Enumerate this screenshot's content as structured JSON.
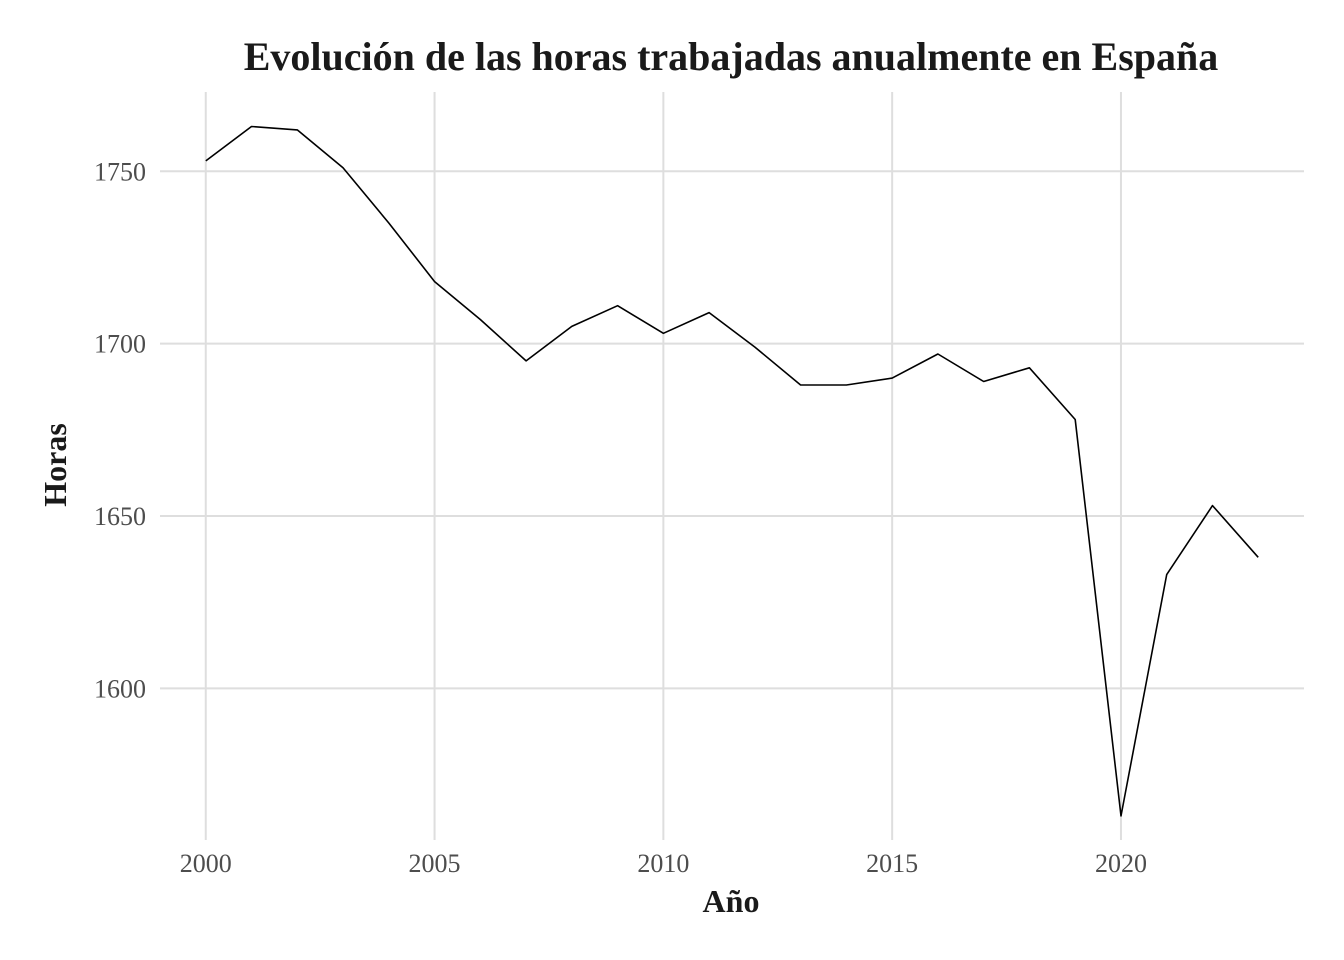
{
  "chart_data": {
    "type": "line",
    "title": "Evolución de las horas trabajadas anualmente en España",
    "xlabel": "Año",
    "ylabel": "Horas",
    "xlim": [
      1999.0,
      2024.0
    ],
    "ylim": [
      1556,
      1773
    ],
    "x_ticks": [
      "2000",
      "2005",
      "2010",
      "2015",
      "2020"
    ],
    "y_ticks": [
      "1600",
      "1650",
      "1700",
      "1750"
    ],
    "grid": true,
    "legend": "none",
    "line_color": "#000000",
    "series": [
      {
        "x": [
          2000,
          2001,
          2002,
          2003,
          2004,
          2005,
          2006,
          2007,
          2008,
          2009,
          2010,
          2011,
          2012,
          2013,
          2014,
          2015,
          2016,
          2017,
          2018,
          2019,
          2020,
          2021,
          2022,
          2023
        ],
        "values": [
          1753,
          1763,
          1762,
          1751,
          1735,
          1718,
          1707,
          1695,
          1705,
          1711,
          1703,
          1709,
          1699,
          1688,
          1688,
          1690,
          1697,
          1689,
          1693,
          1678,
          1563,
          1633,
          1653,
          1638
        ]
      }
    ]
  }
}
